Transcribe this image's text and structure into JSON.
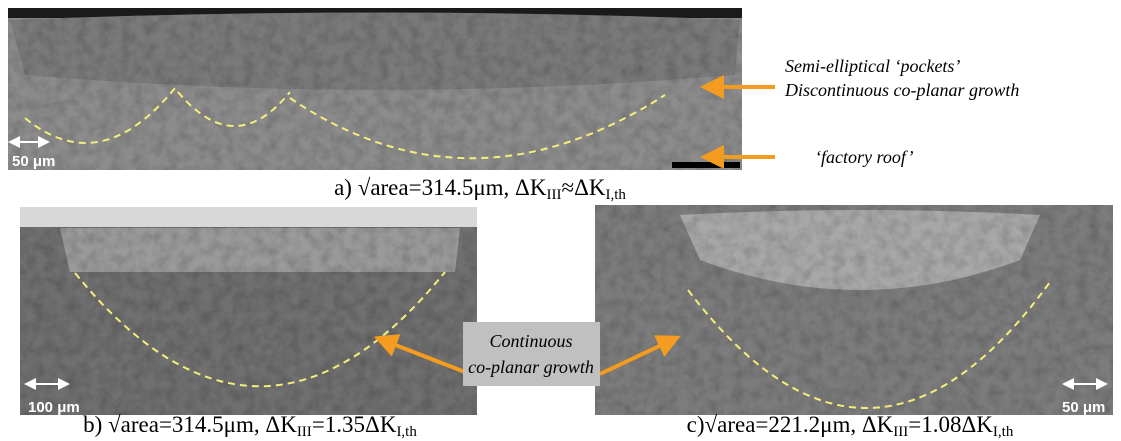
{
  "panels": [
    {
      "scale_bar": "50 μm",
      "caption": [
        "a) √area=314.5μm, ΔK",
        "III",
        "≈ΔK",
        "I,th"
      ]
    },
    {
      "scale_bar": "100 μm",
      "caption": [
        "b) √area=314.5μm, ΔK",
        "III",
        "=1.35ΔK",
        "I,th"
      ]
    },
    {
      "scale_bar": "50 μm",
      "caption": [
        "c)√area=221.2μm, ΔK",
        "III",
        "=1.08ΔK",
        "I,th"
      ]
    }
  ],
  "annotations": {
    "pockets": [
      "Semi-elliptical ‘pockets’",
      "Discontinuous co-planar growth"
    ],
    "factory_roof": "‘factory roof’",
    "continuous": [
      "Continuous",
      "co-planar growth"
    ]
  }
}
